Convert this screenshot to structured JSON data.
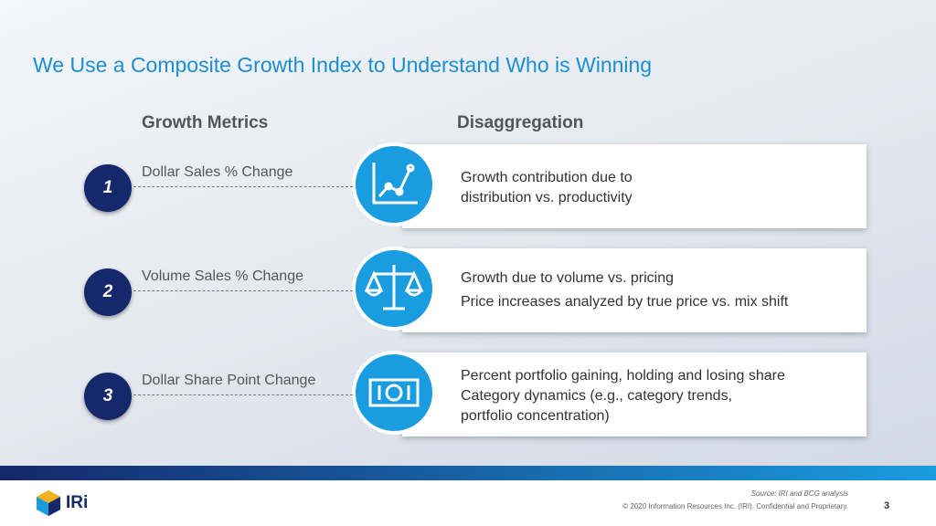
{
  "header": {
    "title": "We Use a Composite Growth Index to Understand Who is Winning"
  },
  "columns": {
    "left": "Growth Metrics",
    "right": "Disaggregation"
  },
  "rows": [
    {
      "number": "1",
      "metric": "Dollar Sales % Change",
      "details": [
        "Growth contribution due to",
        "distribution vs. productivity"
      ]
    },
    {
      "number": "2",
      "metric": "Volume Sales % Change",
      "details": [
        "Growth due to volume vs. pricing",
        "Price increases analyzed by true price vs. mix shift"
      ]
    },
    {
      "number": "3",
      "metric": "Dollar Share Point Change",
      "details": [
        "Percent portfolio gaining, holding and losing share",
        "Category dynamics (e.g., category trends,",
        "portfolio concentration)"
      ]
    }
  ],
  "footer": {
    "logo": "IRi",
    "source": "Source: IRI and BCG analysis",
    "copyright": "© 2020 Information Resources Inc. (IRI). Confidential and Proprietary.",
    "page": "3"
  }
}
